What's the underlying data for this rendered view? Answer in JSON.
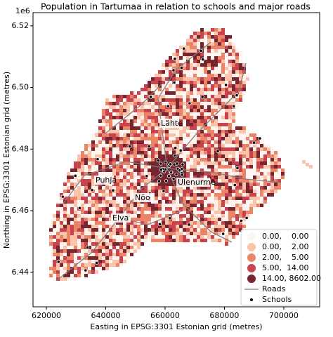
{
  "chart_data": {
    "type": "map",
    "title": "Population in Tartumaa in relation to schools and major roads",
    "xlabel": "Easting in EPSG:3301 Estonian grid (metres)",
    "ylabel": "Northing in EPSG:3301 Estonian grid (metres)",
    "y_offset_label": "1e6",
    "xlim": [
      615500,
      712100
    ],
    "ylim": [
      6.4288,
      6.5243
    ],
    "xticks": [
      620000,
      640000,
      660000,
      680000,
      700000
    ],
    "yticks": [
      6.44,
      6.46,
      6.48,
      {
        "value": 6.5,
        "label": "6.50"
      },
      6.52
    ],
    "places": [
      "Lähte",
      "Puhja",
      "Nõo",
      "Elva",
      "Ulenurme"
    ],
    "legend": {
      "position": "lower right",
      "classes": [
        {
          "label": "0.00,    0.00",
          "color": "#fff5f0"
        },
        {
          "label": "0.00,    2.00",
          "color": "#f9c4aa"
        },
        {
          "label": "2.00,    5.00",
          "color": "#ec8468"
        },
        {
          "label": "5.00,  14.00",
          "color": "#c8434d"
        },
        {
          "label": "14.00, 8602.00",
          "color": "#76262f"
        }
      ],
      "roads": {
        "label": "Roads",
        "color": "#808080"
      },
      "schools": {
        "label": "Schools",
        "color": "#000000"
      }
    }
  }
}
